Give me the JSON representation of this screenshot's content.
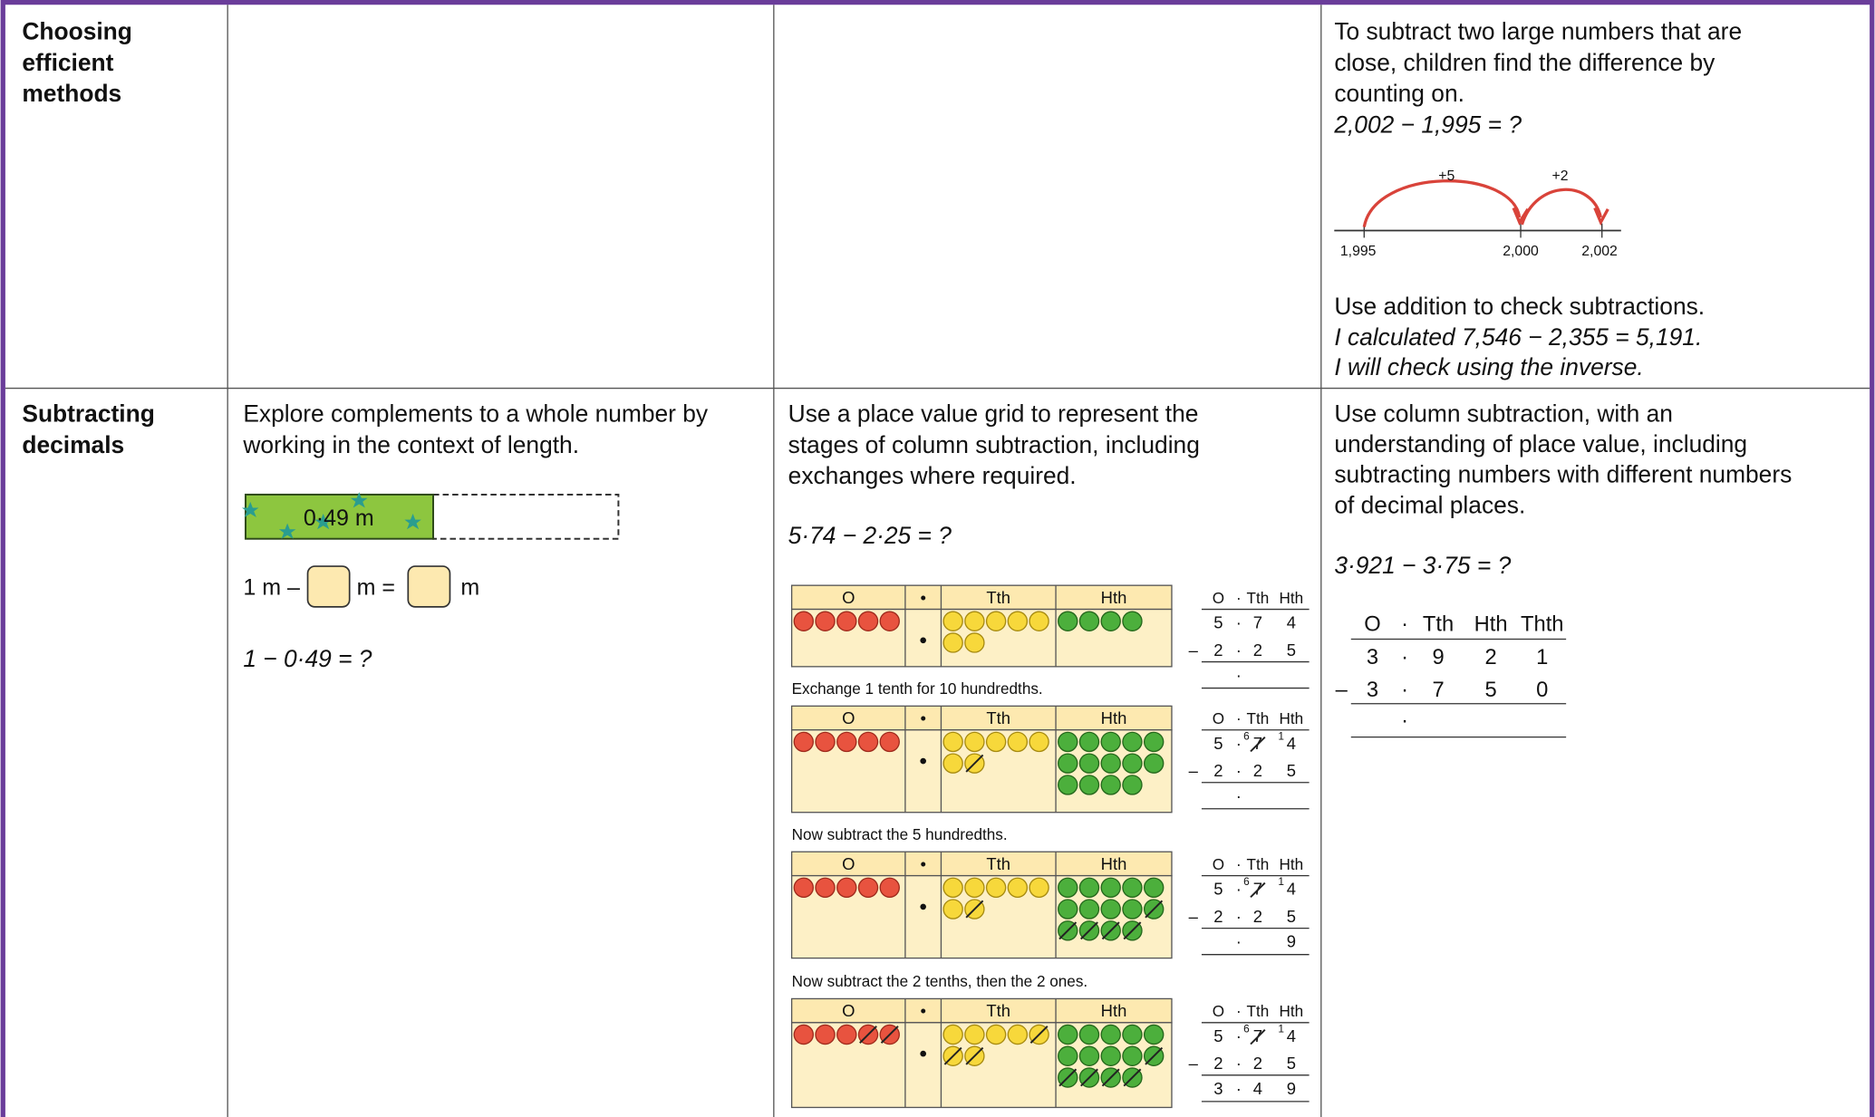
{
  "rows": [
    {
      "heading": [
        "Choosing",
        "efficient",
        "methods"
      ],
      "col3": {
        "text": [
          "To subtract two large numbers that are",
          "close, children find the difference by",
          "counting on."
        ],
        "equation": "2,002 − 1,995 = ?",
        "number_line": {
          "jumps": [
            "+5",
            "+2"
          ],
          "labels": [
            "1,995",
            "2,000",
            "2,002"
          ]
        },
        "check_text": "Use addition to check subtractions.",
        "check_example": [
          "I calculated 7,546 − 2,355 = 5,191.",
          "I will check using the inverse."
        ]
      }
    },
    {
      "heading": [
        "Subtracting",
        "decimals"
      ],
      "col1": {
        "text": [
          "Explore complements to a whole number by",
          "working in the context of length."
        ],
        "bar_label": "0·49 m",
        "sentence": [
          "1 m –",
          "m =",
          "m"
        ],
        "equation": "1 − 0·49 = ?"
      },
      "col2": {
        "text": [
          "Use a place value grid to represent the",
          "stages of column subtraction, including",
          "exchanges where required."
        ],
        "equation": "5·74 − 2·25 = ?",
        "grid_headers": [
          "O",
          "•",
          "Tth",
          "Hth"
        ],
        "column_headers": [
          "O",
          "·",
          "Tth",
          "Hth"
        ],
        "stages": [
          {
            "top": [
              "5",
              "·",
              "7",
              "4"
            ],
            "bottom": [
              "–",
              "2",
              "·",
              "2",
              "5"
            ],
            "result": [
              "·"
            ]
          },
          {
            "caption": "Exchange 1 tenth for 10 hundredths.",
            "top": [
              "5",
              "·",
              "7",
              "4"
            ],
            "exchange": [
              "6",
              "1"
            ],
            "bottom": [
              "–",
              "2",
              "·",
              "2",
              "5"
            ],
            "result": [
              "·"
            ]
          },
          {
            "caption": "Now subtract the 5 hundredths.",
            "top": [
              "5",
              "·",
              "7",
              "4"
            ],
            "exchange": [
              "6",
              "1"
            ],
            "bottom": [
              "–",
              "2",
              "·",
              "2",
              "5"
            ],
            "result": [
              "·",
              "9"
            ]
          },
          {
            "caption": "Now subtract the 2 tenths, then the 2 ones.",
            "top": [
              "5",
              "·",
              "7",
              "4"
            ],
            "exchange": [
              "6",
              "1"
            ],
            "bottom": [
              "–",
              "2",
              "·",
              "2",
              "5"
            ],
            "result": [
              "3",
              "·",
              "4",
              "9"
            ]
          }
        ]
      },
      "col3": {
        "text": [
          "Use column subtraction, with an",
          "understanding of place value, including",
          "subtracting numbers with different numbers",
          "of decimal places."
        ],
        "equation": "3·921 − 3·75 = ?",
        "column_headers": [
          "O",
          "·",
          "Tth",
          "Hth",
          "Thth"
        ],
        "top": [
          "3",
          "·",
          "9",
          "2",
          "1"
        ],
        "bottom": [
          "–",
          "3",
          "·",
          "7",
          "5",
          "0"
        ],
        "result": [
          "·"
        ]
      }
    }
  ]
}
